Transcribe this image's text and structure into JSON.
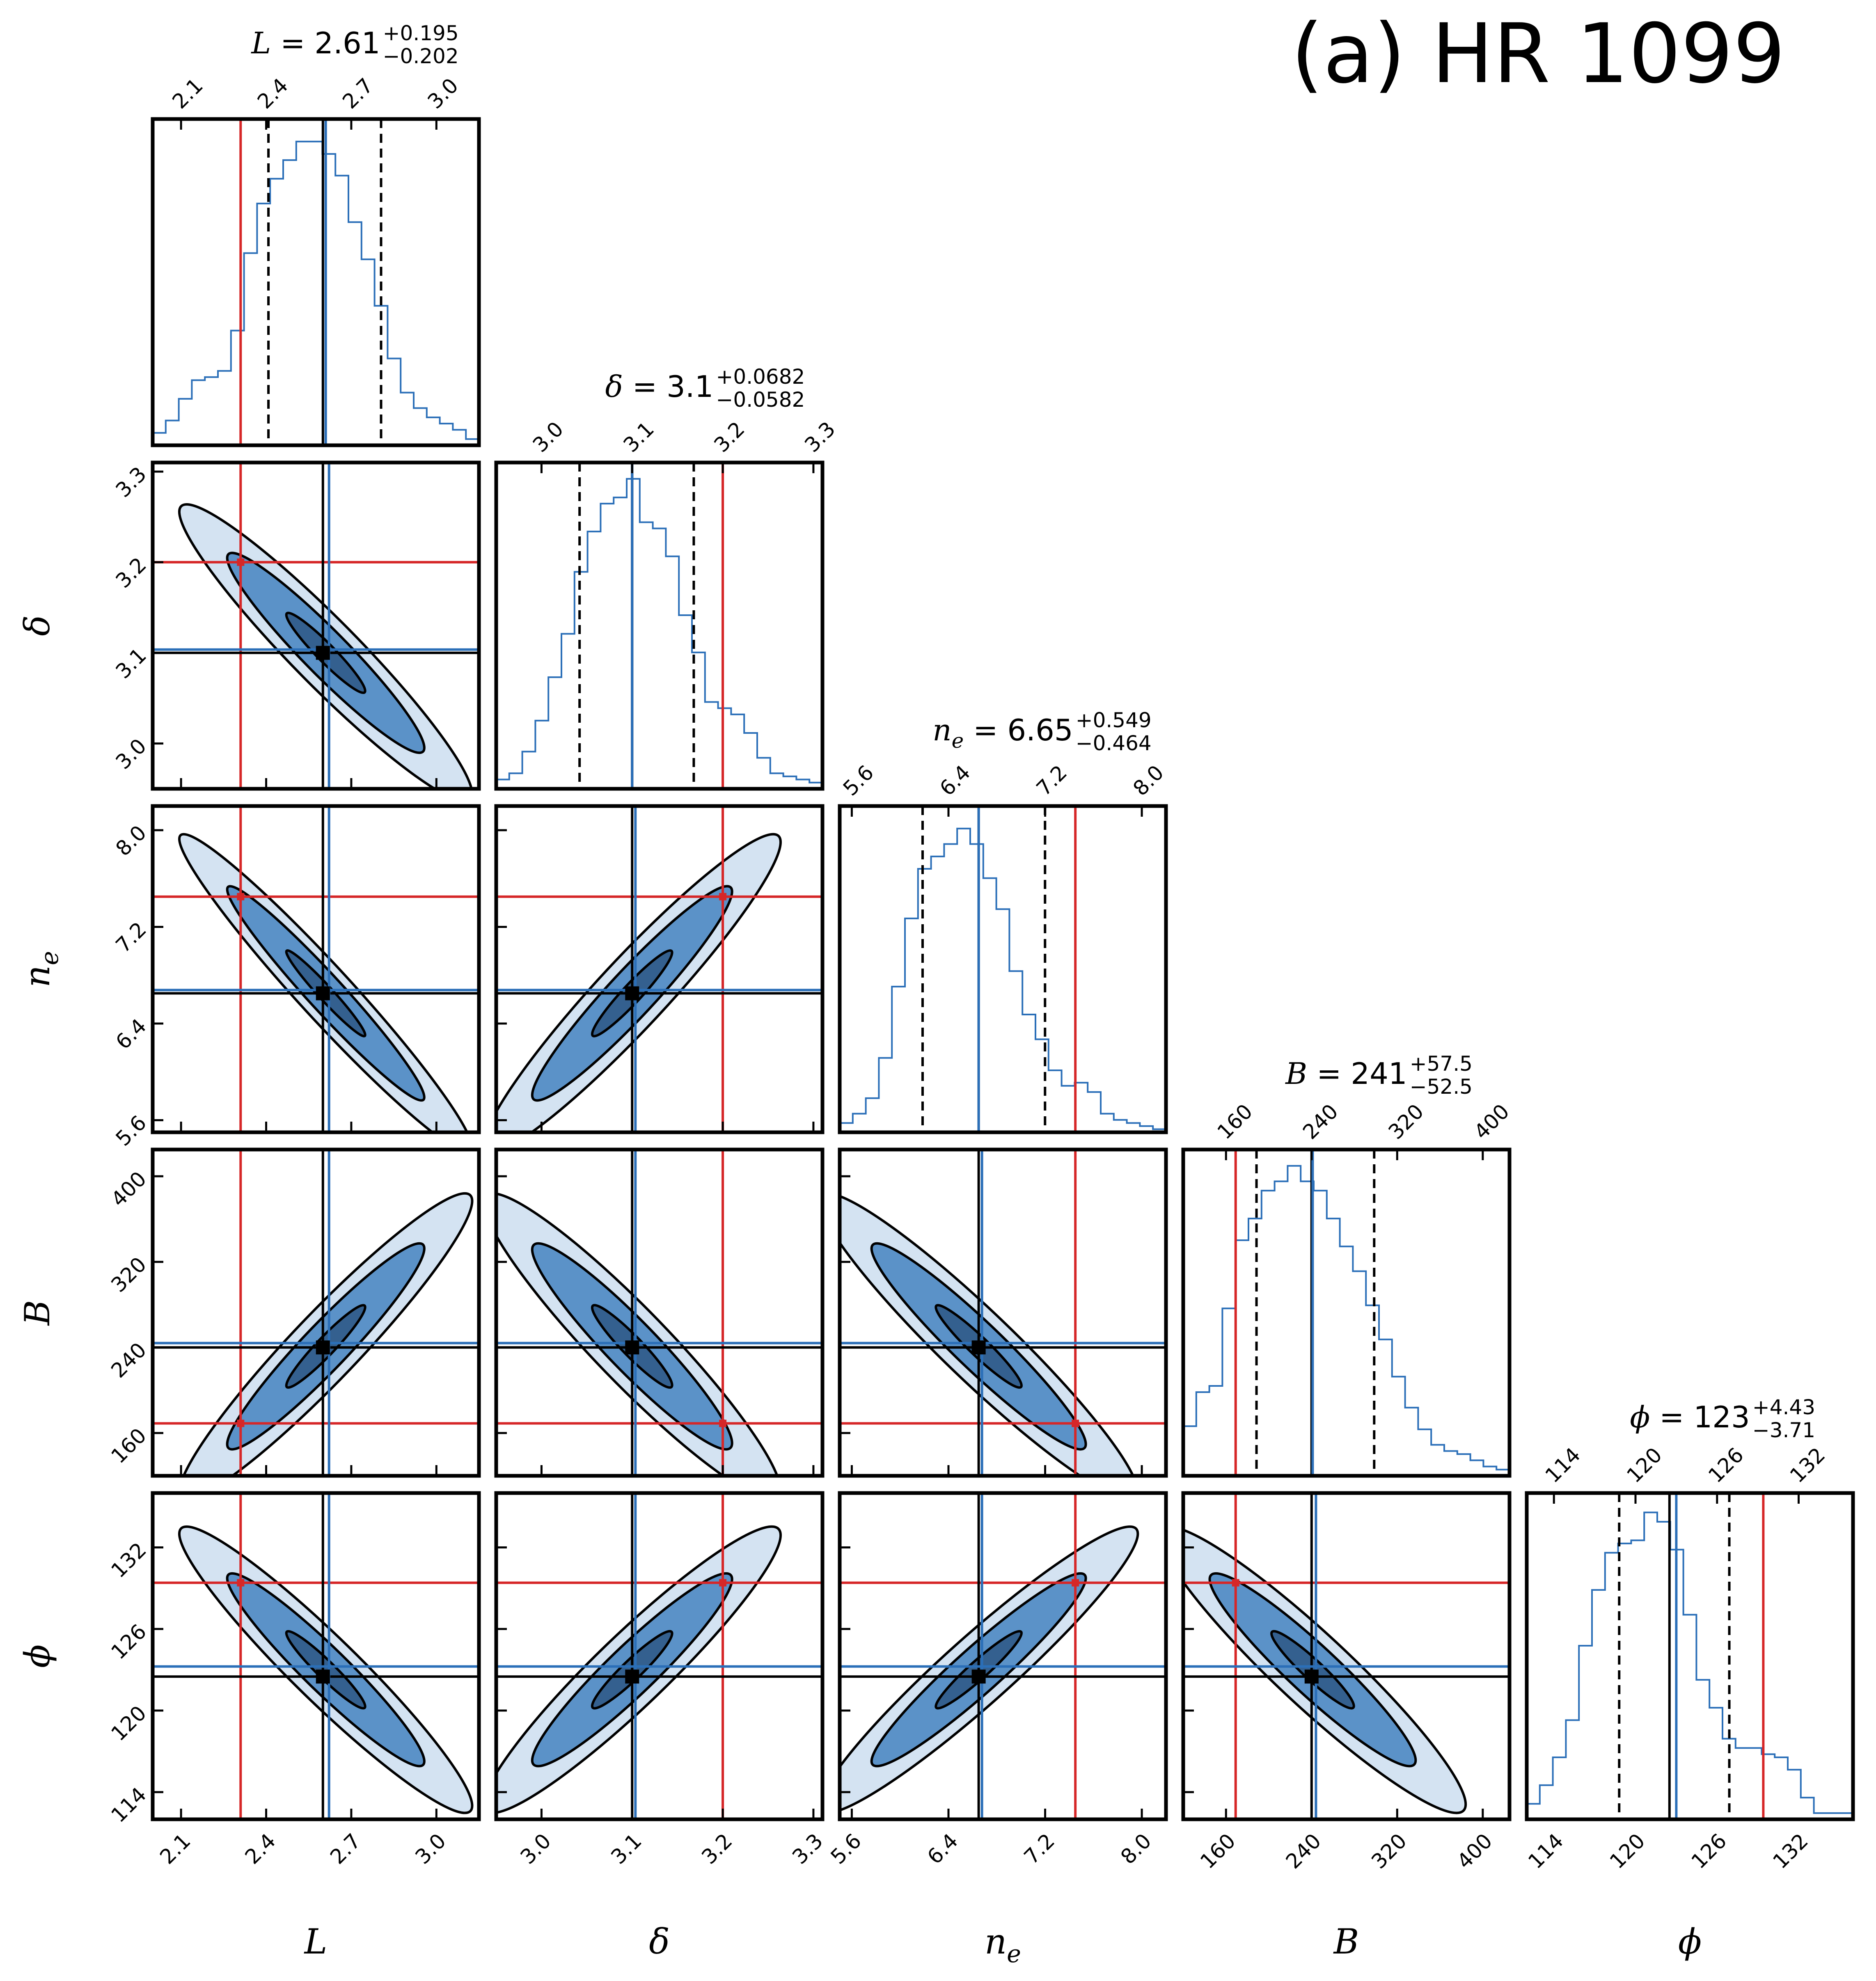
{
  "figure_label": "(a) HR 1099",
  "colors": {
    "frame": "#000000",
    "hist": "#2b6fb8",
    "truth": "#d62728",
    "median": "#2b6fb8",
    "best": "#000000",
    "contour_outer": "#d4e3f2",
    "contour_mid": "#5b92c8",
    "contour_inner": "#34608f"
  },
  "chart_data": {
    "type": "corner",
    "params": [
      {
        "symbol": "L",
        "sub": "",
        "title": {
          "sym": "L",
          "sub": "",
          "value": "2.61",
          "plus": "+0.195",
          "minus": "−0.202"
        },
        "range": [
          2.0,
          3.15
        ],
        "ticks": [
          2.1,
          2.4,
          2.7,
          3.0
        ],
        "tick_labels": [
          "2.1",
          "2.4",
          "2.7",
          "3.0"
        ],
        "median": 2.61,
        "q16": 2.408,
        "q84": 2.805,
        "truth": 2.31,
        "best": 2.6,
        "hist": [
          0.04,
          0.08,
          0.15,
          0.21,
          0.22,
          0.24,
          0.37,
          0.62,
          0.78,
          0.86,
          0.92,
          0.98,
          0.98,
          0.94,
          0.87,
          0.72,
          0.6,
          0.45,
          0.28,
          0.17,
          0.12,
          0.09,
          0.07,
          0.05,
          0.02
        ]
      },
      {
        "symbol": "δ",
        "sub": "",
        "title": {
          "sym": "δ",
          "sub": "",
          "value": "3.1",
          "plus": "+0.0682",
          "minus": "−0.0582"
        },
        "range": [
          2.95,
          3.31
        ],
        "ticks": [
          3.0,
          3.1,
          3.2,
          3.3
        ],
        "tick_labels": [
          "3.0",
          "3.1",
          "3.2",
          "3.3"
        ],
        "median": 3.1,
        "q16": 3.042,
        "q84": 3.168,
        "truth": 3.2,
        "best": 3.1,
        "hist": [
          0.03,
          0.05,
          0.12,
          0.22,
          0.36,
          0.5,
          0.7,
          0.83,
          0.92,
          0.94,
          1.0,
          0.86,
          0.84,
          0.75,
          0.56,
          0.44,
          0.28,
          0.26,
          0.24,
          0.18,
          0.1,
          0.05,
          0.04,
          0.03,
          0.02
        ]
      },
      {
        "symbol": "n",
        "sub": "e",
        "title": {
          "sym": "n",
          "sub": "e",
          "value": "6.65",
          "plus": "+0.549",
          "minus": "−0.464"
        },
        "range": [
          5.5,
          8.2
        ],
        "ticks": [
          5.6,
          6.4,
          7.2,
          8.0
        ],
        "tick_labels": [
          "5.6",
          "6.4",
          "7.2",
          "8.0"
        ],
        "median": 6.65,
        "q16": 6.186,
        "q84": 7.199,
        "truth": 7.45,
        "best": 6.65,
        "hist": [
          0.03,
          0.06,
          0.11,
          0.24,
          0.47,
          0.69,
          0.85,
          0.89,
          0.93,
          0.98,
          0.93,
          0.82,
          0.72,
          0.52,
          0.38,
          0.3,
          0.2,
          0.15,
          0.16,
          0.13,
          0.06,
          0.04,
          0.03,
          0.02,
          0.01
        ]
      },
      {
        "symbol": "B",
        "sub": "",
        "title": {
          "sym": "B",
          "sub": "",
          "value": "241",
          "plus": "+57.5",
          "minus": "−52.5"
        },
        "range": [
          120,
          425
        ],
        "ticks": [
          160,
          240,
          320,
          400
        ],
        "tick_labels": [
          "160",
          "240",
          "320",
          "400"
        ],
        "median": 241,
        "q16": 188.5,
        "q84": 298.5,
        "truth": 169,
        "best": 240,
        "hist": [
          0.16,
          0.27,
          0.29,
          0.54,
          0.76,
          0.83,
          0.92,
          0.95,
          1.0,
          0.95,
          0.92,
          0.83,
          0.74,
          0.66,
          0.55,
          0.44,
          0.32,
          0.22,
          0.15,
          0.1,
          0.08,
          0.07,
          0.05,
          0.03,
          0.02
        ]
      },
      {
        "symbol": "ϕ",
        "sub": "",
        "title": {
          "sym": "ϕ",
          "sub": "",
          "value": "123",
          "plus": "+4.43",
          "minus": "−3.71"
        },
        "range": [
          112,
          136
        ],
        "ticks": [
          114,
          120,
          126,
          132
        ],
        "tick_labels": [
          "114",
          "120",
          "126",
          "132"
        ],
        "median": 123,
        "q16": 118.8,
        "q84": 126.9,
        "truth": 129.4,
        "best": 122.5,
        "hist": [
          0.05,
          0.11,
          0.2,
          0.32,
          0.56,
          0.74,
          0.86,
          0.89,
          0.9,
          0.99,
          0.96,
          0.87,
          0.66,
          0.45,
          0.36,
          0.26,
          0.23,
          0.23,
          0.21,
          0.2,
          0.16,
          0.07,
          0.02,
          0.02,
          0.02
        ]
      }
    ],
    "correlations": [
      [
        1,
        -0.95,
        -0.97,
        0.95,
        -0.95
      ],
      [
        -0.95,
        1,
        0.95,
        -0.94,
        0.94
      ],
      [
        -0.97,
        0.95,
        1,
        -0.95,
        0.95
      ],
      [
        0.95,
        -0.94,
        -0.95,
        1,
        -0.94
      ],
      [
        -0.95,
        0.94,
        0.95,
        -0.94,
        1
      ]
    ],
    "contour_levels": [
      0.15,
      0.55,
      0.88
    ]
  }
}
